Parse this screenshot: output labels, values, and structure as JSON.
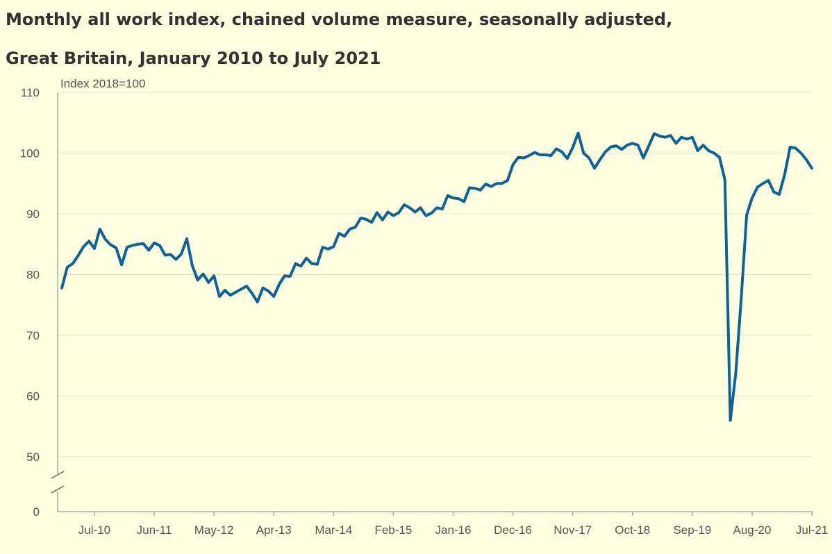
{
  "title_line1": "Monthly all work index, chained volume measure, seasonally adjusted,",
  "title_line2": "Great Britain, January 2010 to July 2021",
  "colors": {
    "background": "#fefee0",
    "line": "#0f6196",
    "grid": "#e6e6cf",
    "axis": "#aaaaaa"
  },
  "chart_data": {
    "type": "line",
    "title": "Monthly all work index, chained volume measure, seasonally adjusted, Great Britain, January 2010 to July 2021",
    "ylabel": "Index 2018=100",
    "xlabel": "",
    "ylim": [
      0,
      110
    ],
    "axis_break": [
      0,
      50
    ],
    "y_ticks": [
      0,
      50,
      60,
      70,
      80,
      90,
      100,
      110
    ],
    "x_tick_labels": [
      "Jul-10",
      "Jun-11",
      "May-12",
      "Apr-13",
      "Mar-14",
      "Feb-15",
      "Jan-16",
      "Dec-16",
      "Nov-17",
      "Oct-18",
      "Sep-19",
      "Aug-20",
      "Jul-21"
    ],
    "x_tick_indices": [
      6,
      17,
      28,
      39,
      50,
      61,
      72,
      83,
      94,
      105,
      116,
      127,
      138
    ],
    "grid": true,
    "legend": "none",
    "x_start": "Jan-10",
    "series": [
      {
        "values": [
          77.8,
          81.2,
          81.8,
          83.1,
          84.6,
          85.5,
          84.3,
          87.5,
          85.8,
          84.9,
          84.4,
          81.6,
          84.5,
          84.8,
          85.0,
          85.1,
          84.0,
          85.2,
          84.8,
          83.2,
          83.3,
          82.5,
          83.4,
          85.9,
          81.5,
          79.1,
          80.1,
          78.7,
          79.8,
          76.4,
          77.4,
          76.6,
          77.1,
          77.6,
          78.1,
          76.9,
          75.5,
          77.8,
          77.3,
          76.4,
          78.4,
          79.8,
          79.7,
          81.8,
          81.4,
          82.7,
          81.8,
          81.7,
          84.5,
          84.2,
          84.6,
          86.8,
          86.3,
          87.5,
          87.8,
          89.3,
          89.1,
          88.6,
          90.2,
          89.0,
          90.3,
          89.7,
          90.2,
          91.5,
          91.0,
          90.3,
          91.0,
          89.7,
          90.1,
          91.0,
          90.8,
          93.0,
          92.6,
          92.5,
          92.0,
          94.3,
          94.2,
          93.9,
          94.9,
          94.5,
          95.0,
          95.0,
          95.5,
          98.1,
          99.3,
          99.2,
          99.6,
          100.1,
          99.7,
          99.7,
          99.6,
          100.7,
          100.2,
          99.1,
          100.9,
          103.3,
          100.0,
          99.2,
          97.5,
          98.9,
          100.2,
          101.0,
          101.2,
          100.6,
          101.3,
          101.6,
          101.3,
          99.2,
          101.2,
          103.2,
          102.8,
          102.6,
          102.9,
          101.6,
          102.6,
          102.3,
          102.6,
          100.4,
          101.3,
          100.4,
          100.0,
          99.3,
          95.6,
          56.0,
          63.8,
          76.0,
          89.8,
          92.6,
          94.4,
          95.0,
          95.5,
          93.6,
          93.2,
          96.5,
          101.0,
          100.8,
          100.0,
          98.9,
          97.5
        ]
      }
    ]
  }
}
